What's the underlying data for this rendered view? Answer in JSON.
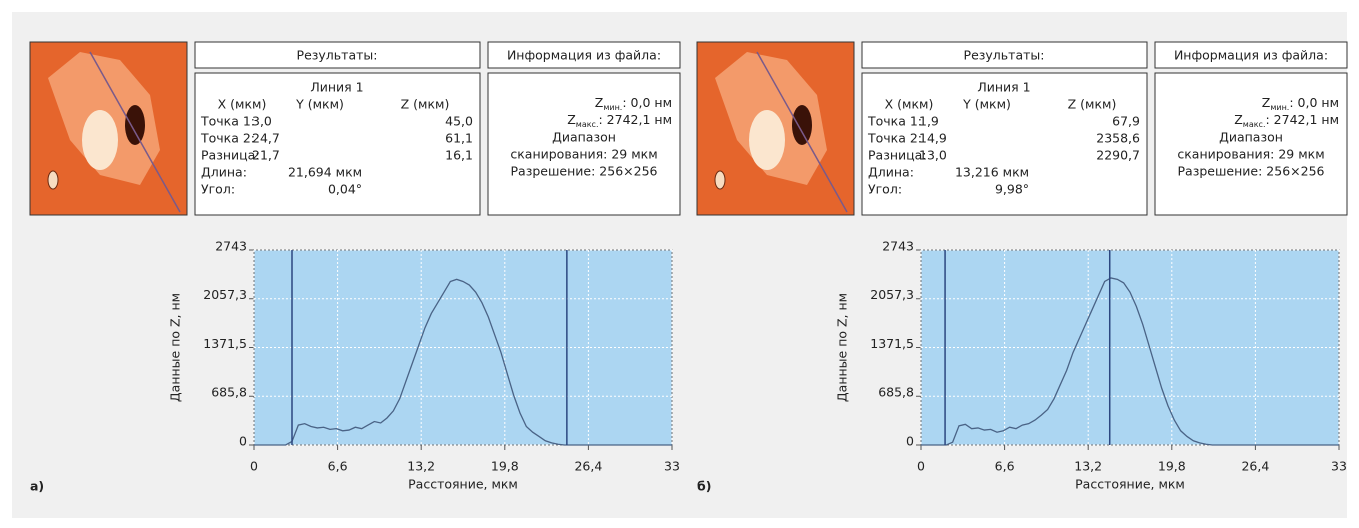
{
  "panels": [
    {
      "label": "а)",
      "results": {
        "title": "Результаты:",
        "line": "Линия 1",
        "headers": [
          "X (мкм)",
          "Y (мкм)",
          "Z (мкм)"
        ],
        "rows": [
          {
            "label": "Точка 1:",
            "x": "3,0",
            "z": "45,0"
          },
          {
            "label": "Точка 2:",
            "x": "24,7",
            "z": "61,1"
          },
          {
            "label": "Разница:",
            "x": "21,7",
            "z": "16,1"
          }
        ],
        "length": {
          "label": "Длина:",
          "value": "21,694 мкм"
        },
        "angle": {
          "label": "Угол:",
          "value": "0,04°"
        }
      },
      "info": {
        "title": "Информация из файла:",
        "zmin": {
          "symbol": "Z",
          "sub": "мин.",
          "value": ": 0,0 нм"
        },
        "zmax": {
          "symbol": "Z",
          "sub": "макс.",
          "value": ": 2742,1 нм"
        },
        "range1": "Диапазон",
        "range2": "сканирования: 29 мкм",
        "resolution": "Разрешение: 256×256"
      }
    },
    {
      "label": "б)",
      "results": {
        "title": "Результаты:",
        "line": "Линия 1",
        "headers": [
          "X (мкм)",
          "Y (мкм)",
          "Z (мкм)"
        ],
        "rows": [
          {
            "label": "Точка 1:",
            "x": "1,9",
            "z": "67,9"
          },
          {
            "label": "Точка 2:",
            "x": "14,9",
            "z": "2358,6"
          },
          {
            "label": "Разница:",
            "x": "13,0",
            "z": "2290,7"
          }
        ],
        "length": {
          "label": "Длина:",
          "value": "13,216 мкм"
        },
        "angle": {
          "label": "Угол:",
          "value": "9,98°"
        }
      },
      "info": {
        "title": "Информация из файла:",
        "zmin": {
          "symbol": "Z",
          "sub": "мин.",
          "value": ": 0,0 нм"
        },
        "zmax": {
          "symbol": "Z",
          "sub": "макс.",
          "value": ": 2742,1 нм"
        },
        "range1": "Диапазон",
        "range2": "сканирования: 29 мкм",
        "resolution": "Разрешение: 256×256"
      }
    }
  ],
  "chart_data": [
    {
      "type": "line",
      "xlabel": "Расстояние, мкм",
      "ylabel": "Данные по Z, нм",
      "xlim": [
        0,
        33
      ],
      "ylim": [
        0,
        2743
      ],
      "xticks": [
        0,
        {
          "value": 6.6,
          "label": "6,6"
        },
        {
          "value": 13.2,
          "label": "13,2"
        },
        {
          "value": 19.8,
          "label": "19,8"
        },
        {
          "value": 26.4,
          "label": "26,4"
        },
        33
      ],
      "yticks": [
        0,
        {
          "value": 685.8,
          "label": "685,8"
        },
        {
          "value": 1371.5,
          "label": "1371,5"
        },
        {
          "value": 2057.3,
          "label": "2057,3"
        },
        2743
      ],
      "grid": true,
      "cursors": [
        3.0,
        24.7
      ],
      "cursor_color": "#2c4780",
      "background": "#acd6f2",
      "x": [
        0,
        0.5,
        1,
        1.5,
        2,
        2.5,
        3,
        3.5,
        4,
        4.5,
        5,
        5.5,
        6,
        6.5,
        7,
        7.5,
        8,
        8.5,
        9,
        9.5,
        10,
        10.5,
        11,
        11.5,
        12,
        12.5,
        13,
        13.5,
        14,
        14.5,
        15,
        15.5,
        16,
        16.5,
        17,
        17.5,
        18,
        18.5,
        19,
        19.5,
        20,
        20.5,
        21,
        21.5,
        22,
        22.5,
        23,
        23.5,
        24,
        24.5,
        25,
        25.5,
        26,
        26.5,
        27,
        27.5,
        28,
        28.5,
        29,
        29.5,
        30,
        30.5,
        31,
        31.5,
        32,
        32.5,
        33
      ],
      "series": [
        {
          "color": "#4a6386",
          "values": [
            0,
            0,
            0,
            0,
            0,
            0,
            50,
            280,
            300,
            260,
            240,
            250,
            220,
            230,
            200,
            210,
            250,
            230,
            280,
            330,
            310,
            380,
            480,
            650,
            900,
            1150,
            1400,
            1650,
            1850,
            2000,
            2150,
            2300,
            2330,
            2300,
            2250,
            2150,
            2000,
            1800,
            1550,
            1300,
            1000,
            700,
            450,
            260,
            180,
            120,
            60,
            30,
            10,
            0,
            0,
            0,
            0,
            0,
            0,
            0,
            0,
            0,
            0,
            0,
            0,
            0,
            0,
            0,
            0,
            0,
            0
          ]
        }
      ]
    },
    {
      "type": "line",
      "xlabel": "Расстояние, мкм",
      "ylabel": "Данные по Z, нм",
      "xlim": [
        0,
        33
      ],
      "ylim": [
        0,
        2743
      ],
      "xticks": [
        0,
        {
          "value": 6.6,
          "label": "6,6"
        },
        {
          "value": 13.2,
          "label": "13,2"
        },
        {
          "value": 19.8,
          "label": "19,8"
        },
        {
          "value": 26.4,
          "label": "26,4"
        },
        33
      ],
      "yticks": [
        0,
        {
          "value": 685.8,
          "label": "685,8"
        },
        {
          "value": 1371.5,
          "label": "1371,5"
        },
        {
          "value": 2057.3,
          "label": "2057,3"
        },
        2743
      ],
      "grid": true,
      "cursors": [
        1.9,
        14.9
      ],
      "cursor_color": "#2c4780",
      "background": "#acd6f2",
      "x": [
        0,
        0.5,
        1,
        1.5,
        2,
        2.5,
        3,
        3.5,
        4,
        4.5,
        5,
        5.5,
        6,
        6.5,
        7,
        7.5,
        8,
        8.5,
        9,
        9.5,
        10,
        10.5,
        11,
        11.5,
        12,
        12.5,
        13,
        13.5,
        14,
        14.5,
        15,
        15.5,
        16,
        16.5,
        17,
        17.5,
        18,
        18.5,
        19,
        19.5,
        20,
        20.5,
        21,
        21.5,
        22,
        22.5,
        23,
        23.5,
        24,
        24.5,
        25,
        25.5,
        26,
        26.5,
        27,
        27.5,
        28,
        28.5,
        29,
        29.5,
        30,
        30.5,
        31,
        31.5,
        32,
        32.5,
        33
      ],
      "series": [
        {
          "color": "#4a6386",
          "values": [
            0,
            0,
            0,
            0,
            0,
            40,
            270,
            290,
            230,
            240,
            210,
            220,
            180,
            200,
            250,
            230,
            280,
            300,
            350,
            420,
            500,
            650,
            850,
            1050,
            1300,
            1500,
            1700,
            1900,
            2100,
            2300,
            2350,
            2330,
            2280,
            2150,
            1950,
            1700,
            1400,
            1100,
            800,
            550,
            350,
            200,
            120,
            60,
            30,
            10,
            0,
            0,
            0,
            0,
            0,
            0,
            0,
            0,
            0,
            0,
            0,
            0,
            0,
            0,
            0,
            0,
            0,
            0,
            0,
            0,
            0
          ]
        }
      ]
    }
  ]
}
